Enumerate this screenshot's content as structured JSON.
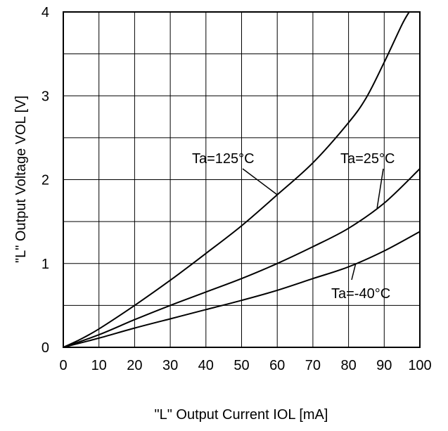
{
  "chart_data": {
    "type": "line",
    "title": "",
    "xlabel": "\"L\" Output Current IOL [mA]",
    "ylabel": "\"L\" Output Voltage VOL [V]",
    "xlim": [
      0,
      100
    ],
    "ylim": [
      0,
      4
    ],
    "xticks": [
      "0",
      "10",
      "20",
      "30",
      "40",
      "50",
      "60",
      "70",
      "80",
      "90",
      "100"
    ],
    "yticks": [
      "0",
      "1",
      "2",
      "3",
      "4"
    ],
    "grid": true,
    "series": [
      {
        "name": "Ta=125°C",
        "x": [
          0,
          5,
          10,
          20,
          30,
          40,
          50,
          60,
          70,
          80,
          85,
          90,
          95,
          97
        ],
        "y": [
          0,
          0.1,
          0.22,
          0.5,
          0.8,
          1.12,
          1.45,
          1.82,
          2.2,
          2.68,
          2.98,
          3.4,
          3.85,
          4.0
        ]
      },
      {
        "name": "Ta=25°C",
        "x": [
          0,
          10,
          20,
          30,
          40,
          50,
          60,
          70,
          80,
          90,
          100
        ],
        "y": [
          0,
          0.15,
          0.33,
          0.5,
          0.66,
          0.82,
          1.0,
          1.2,
          1.42,
          1.72,
          2.13
        ]
      },
      {
        "name": "Ta=-40°C",
        "x": [
          0,
          10,
          20,
          30,
          40,
          50,
          60,
          70,
          80,
          90,
          100
        ],
        "y": [
          0,
          0.11,
          0.23,
          0.34,
          0.45,
          0.56,
          0.68,
          0.82,
          0.96,
          1.15,
          1.38
        ]
      }
    ],
    "annotations": [
      {
        "text": "Ta=125°C",
        "series": 0,
        "x_anchor": 60
      },
      {
        "text": "Ta=25°C",
        "series": 1,
        "x_anchor": 88
      },
      {
        "text": "Ta=-40°C",
        "series": 2,
        "x_anchor": 82
      }
    ]
  }
}
